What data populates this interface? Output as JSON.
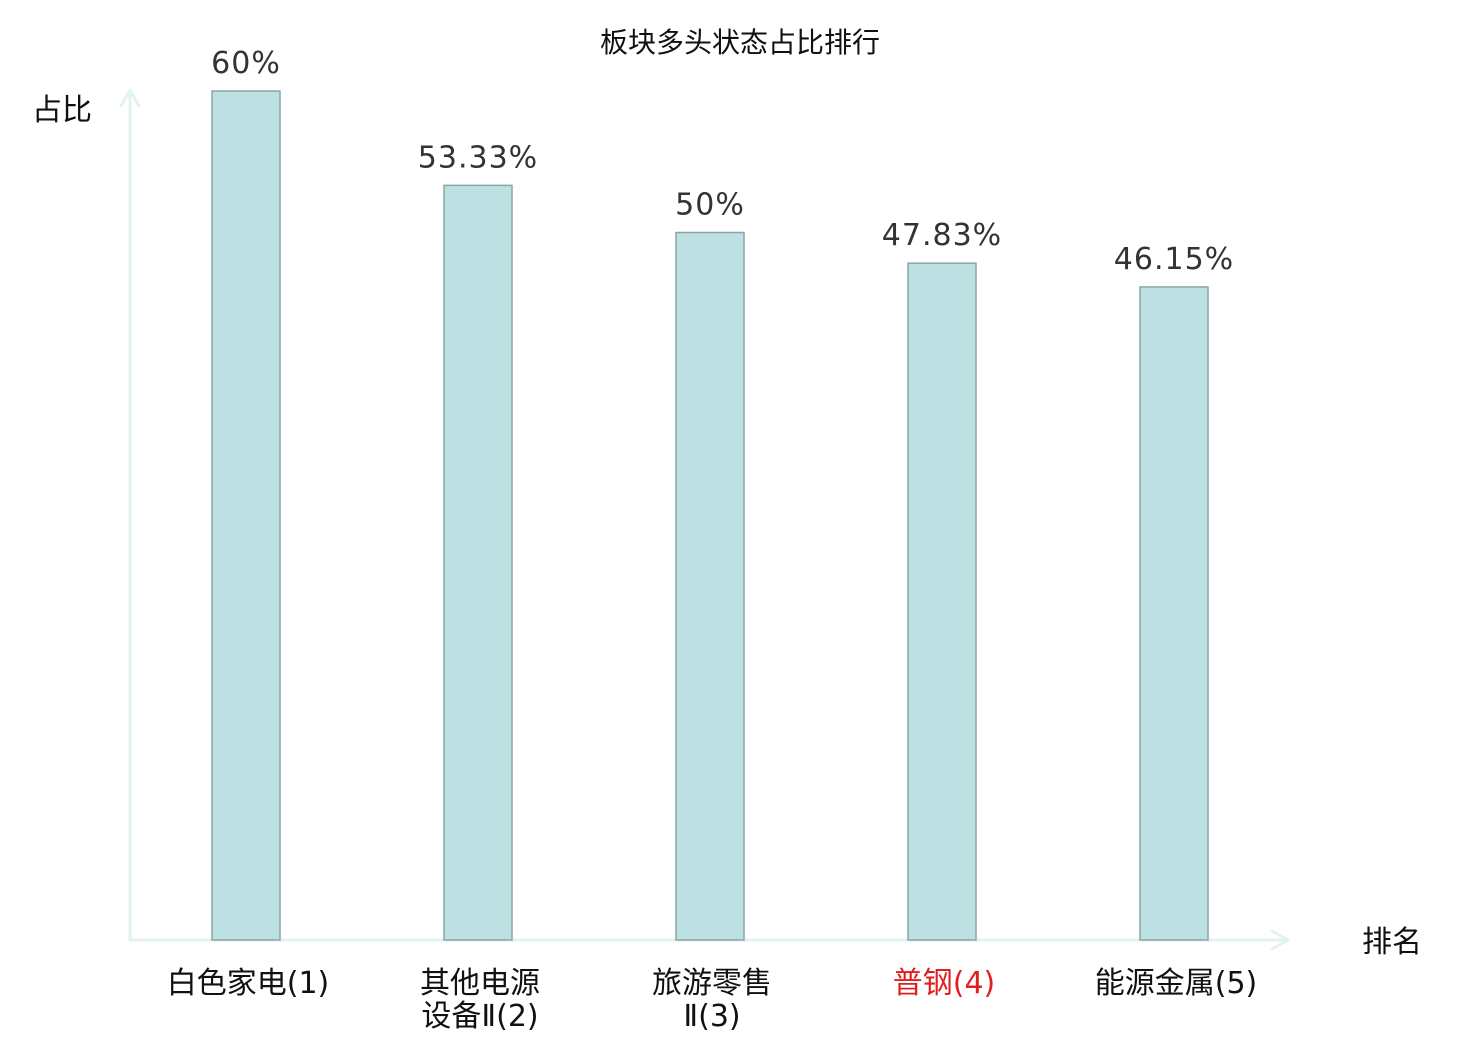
{
  "chart_data": {
    "type": "bar",
    "title": "板块多头状态占比排行",
    "xlabel": "排名",
    "ylabel": "占比",
    "categories": [
      {
        "lines": [
          "白色家电(1)"
        ],
        "highlight": false
      },
      {
        "lines": [
          "其他电源",
          "设备Ⅱ(2)"
        ],
        "highlight": false
      },
      {
        "lines": [
          "旅游零售",
          "Ⅱ(3)"
        ],
        "highlight": false
      },
      {
        "lines": [
          "普钢(4)"
        ],
        "highlight": true
      },
      {
        "lines": [
          "能源金属(5)"
        ],
        "highlight": false
      }
    ],
    "values": [
      60,
      53.33,
      50,
      47.83,
      46.15
    ],
    "value_labels": [
      "60%",
      "53.33%",
      "50%",
      "47.83%",
      "46.15%"
    ],
    "unit": "%",
    "ylim": [
      0,
      60
    ],
    "grid": false,
    "colors": {
      "bar_fill": "#bde1e2",
      "bar_stroke": "#8aa5a6",
      "axis": "#e2f3f1",
      "highlight_text": "#e02020",
      "normal_text": "#111111"
    }
  }
}
